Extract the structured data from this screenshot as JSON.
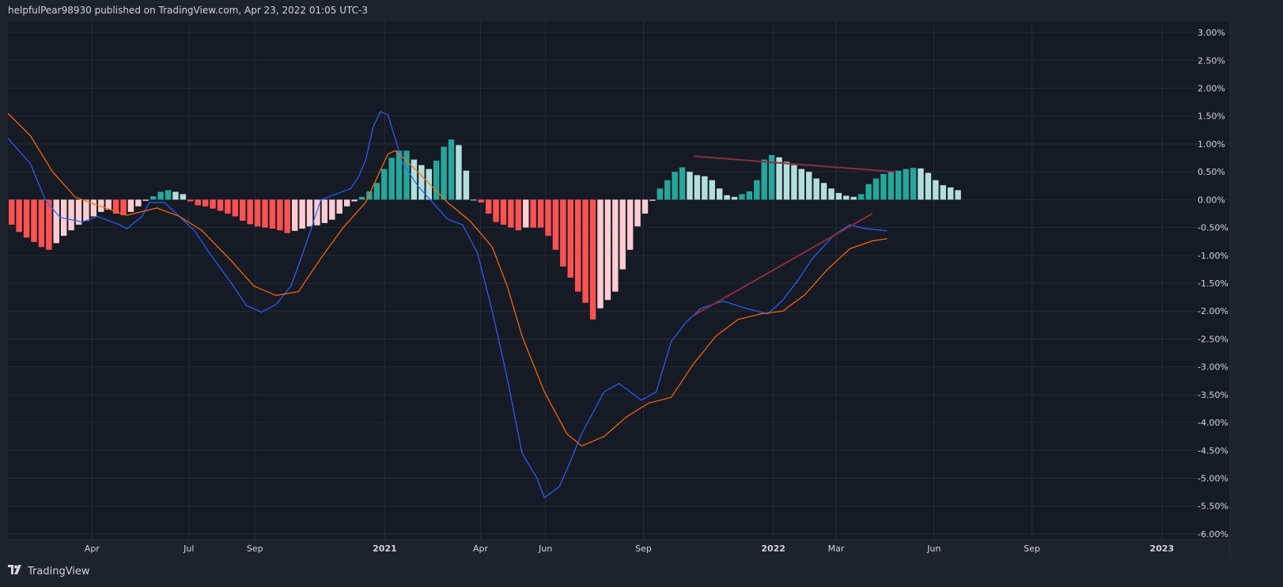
{
  "header": {
    "published_text": "helpfulPear98930 published on TradingView.com, Apr 23, 2022 01:05 UTC-3"
  },
  "footer": {
    "brand": "TradingView",
    "logo_icon": "tradingview-logo-icon"
  },
  "colors": {
    "background": "#161a25",
    "frame": "#1e222d",
    "grid": "#262b36",
    "macd_line": "#2962ff",
    "signal_line": "#ff6d00",
    "hist_pos_growing": "#26a69a",
    "hist_pos_falling": "#b2dfdb",
    "hist_neg_falling": "#ff5252",
    "hist_neg_rising": "#ffcdd2",
    "trendline": "#8a2e3f"
  },
  "chart_data": {
    "type": "line",
    "title": "",
    "xlabel": "",
    "ylabel": "",
    "ylim": [
      -6.1,
      3.2
    ],
    "grid": true,
    "y_ticks": [
      "3.00%",
      "2.50%",
      "2.00%",
      "1.50%",
      "1.00%",
      "0.50%",
      "0.00%",
      "-0.50%",
      "-1.00%",
      "-1.50%",
      "-2.00%",
      "-2.50%",
      "-3.00%",
      "-3.50%",
      "-4.00%",
      "-4.50%",
      "-5.00%",
      "-5.50%",
      "-6.00%"
    ],
    "x_ticks": [
      {
        "label": "Apr",
        "date": "2020-04-01",
        "bold": false
      },
      {
        "label": "Jul",
        "date": "2020-07-01",
        "bold": false
      },
      {
        "label": "Sep",
        "date": "2020-09-01",
        "bold": false
      },
      {
        "label": "2021",
        "date": "2021-01-01",
        "bold": true
      },
      {
        "label": "Apr",
        "date": "2021-04-01",
        "bold": false
      },
      {
        "label": "Jun",
        "date": "2021-06-01",
        "bold": false
      },
      {
        "label": "Sep",
        "date": "2021-09-01",
        "bold": false
      },
      {
        "label": "2022",
        "date": "2022-01-01",
        "bold": true
      },
      {
        "label": "Mar",
        "date": "2022-03-01",
        "bold": false
      },
      {
        "label": "Jun",
        "date": "2022-06-01",
        "bold": false
      },
      {
        "label": "Sep",
        "date": "2022-09-01",
        "bold": false
      },
      {
        "label": "2023",
        "date": "2023-01-01",
        "bold": true
      }
    ],
    "x_range": [
      "2020-01-13",
      "2023-03-06"
    ],
    "histogram": {
      "start_date": "2020-01-13",
      "interval_days": 7,
      "values": [
        -0.45,
        -0.58,
        -0.68,
        -0.76,
        -0.85,
        -0.9,
        -0.78,
        -0.65,
        -0.55,
        -0.45,
        -0.38,
        -0.3,
        -0.22,
        -0.18,
        -0.25,
        -0.28,
        -0.22,
        -0.12,
        -0.02,
        0.06,
        0.14,
        0.17,
        0.14,
        0.1,
        -0.03,
        -0.1,
        -0.12,
        -0.16,
        -0.2,
        -0.25,
        -0.3,
        -0.38,
        -0.44,
        -0.48,
        -0.5,
        -0.52,
        -0.55,
        -0.6,
        -0.56,
        -0.52,
        -0.48,
        -0.46,
        -0.42,
        -0.36,
        -0.25,
        -0.12,
        -0.03,
        0.05,
        0.15,
        0.3,
        0.55,
        0.75,
        0.88,
        0.88,
        0.72,
        0.62,
        0.55,
        0.7,
        0.95,
        1.08,
        0.98,
        0.52,
        0.0,
        -0.05,
        -0.25,
        -0.4,
        -0.45,
        -0.5,
        -0.55,
        -0.5,
        -0.5,
        -0.5,
        -0.65,
        -0.9,
        -1.2,
        -1.4,
        -1.65,
        -1.85,
        -2.15,
        -1.95,
        -1.8,
        -1.65,
        -1.25,
        -0.9,
        -0.48,
        -0.25,
        -0.02,
        0.2,
        0.35,
        0.5,
        0.58,
        0.5,
        0.44,
        0.42,
        0.35,
        0.2,
        0.08,
        0.05,
        0.1,
        0.15,
        0.35,
        0.72,
        0.8,
        0.76,
        0.68,
        0.62,
        0.55,
        0.5,
        0.38,
        0.3,
        0.2,
        0.12,
        0.07,
        0.05,
        0.1,
        0.28,
        0.38,
        0.46,
        0.5,
        0.52,
        0.55,
        0.57,
        0.56,
        0.48,
        0.35,
        0.26,
        0.22,
        0.17
      ]
    },
    "series": [
      {
        "name": "",
        "color_key": "macd_line",
        "points": [
          [
            "2020-01-13",
            1.1
          ],
          [
            "2020-02-03",
            0.65
          ],
          [
            "2020-02-17",
            0.0
          ],
          [
            "2020-03-02",
            -0.32
          ],
          [
            "2020-03-23",
            -0.4
          ],
          [
            "2020-04-06",
            -0.3
          ],
          [
            "2020-04-27",
            -0.45
          ],
          [
            "2020-05-04",
            -0.52
          ],
          [
            "2020-05-18",
            -0.3
          ],
          [
            "2020-05-25",
            -0.05
          ],
          [
            "2020-06-08",
            -0.05
          ],
          [
            "2020-06-22",
            -0.3
          ],
          [
            "2020-07-06",
            -0.55
          ],
          [
            "2020-07-20",
            -0.95
          ],
          [
            "2020-08-10",
            -1.5
          ],
          [
            "2020-08-24",
            -1.9
          ],
          [
            "2020-09-07",
            -2.02
          ],
          [
            "2020-09-21",
            -1.88
          ],
          [
            "2020-10-05",
            -1.55
          ],
          [
            "2020-10-19",
            -0.8
          ],
          [
            "2020-11-02",
            0.0
          ],
          [
            "2020-11-16",
            0.1
          ],
          [
            "2020-11-30",
            0.2
          ],
          [
            "2020-12-07",
            0.4
          ],
          [
            "2020-12-14",
            0.7
          ],
          [
            "2020-12-21",
            1.3
          ],
          [
            "2020-12-28",
            1.58
          ],
          [
            "2021-01-04",
            1.52
          ],
          [
            "2021-01-18",
            0.65
          ],
          [
            "2021-02-01",
            0.25
          ],
          [
            "2021-02-15",
            -0.05
          ],
          [
            "2021-03-01",
            -0.35
          ],
          [
            "2021-03-15",
            -0.45
          ],
          [
            "2021-03-29",
            -0.95
          ],
          [
            "2021-04-12",
            -2.0
          ],
          [
            "2021-04-26",
            -3.2
          ],
          [
            "2021-05-10",
            -4.55
          ],
          [
            "2021-05-24",
            -5.0
          ],
          [
            "2021-05-31",
            -5.35
          ],
          [
            "2021-06-14",
            -5.15
          ],
          [
            "2021-06-21",
            -4.85
          ],
          [
            "2021-07-05",
            -4.2
          ],
          [
            "2021-07-26",
            -3.45
          ],
          [
            "2021-08-09",
            -3.3
          ],
          [
            "2021-08-30",
            -3.6
          ],
          [
            "2021-09-13",
            -3.45
          ],
          [
            "2021-09-27",
            -2.55
          ],
          [
            "2021-10-11",
            -2.2
          ],
          [
            "2021-10-25",
            -1.95
          ],
          [
            "2021-11-15",
            -1.82
          ],
          [
            "2021-12-06",
            -1.95
          ],
          [
            "2021-12-27",
            -2.05
          ],
          [
            "2022-01-10",
            -1.8
          ],
          [
            "2022-01-24",
            -1.45
          ],
          [
            "2022-02-07",
            -1.05
          ],
          [
            "2022-02-28",
            -0.62
          ],
          [
            "2022-03-14",
            -0.45
          ],
          [
            "2022-03-28",
            -0.52
          ],
          [
            "2022-04-18",
            -0.56
          ]
        ]
      },
      {
        "name": "",
        "color_key": "signal_line",
        "points": [
          [
            "2020-01-13",
            1.55
          ],
          [
            "2020-02-03",
            1.15
          ],
          [
            "2020-02-24",
            0.5
          ],
          [
            "2020-03-16",
            0.05
          ],
          [
            "2020-04-06",
            -0.1
          ],
          [
            "2020-05-04",
            -0.28
          ],
          [
            "2020-06-01",
            -0.15
          ],
          [
            "2020-06-22",
            -0.3
          ],
          [
            "2020-07-13",
            -0.55
          ],
          [
            "2020-08-10",
            -1.1
          ],
          [
            "2020-08-31",
            -1.55
          ],
          [
            "2020-09-21",
            -1.72
          ],
          [
            "2020-10-12",
            -1.65
          ],
          [
            "2020-11-02",
            -1.05
          ],
          [
            "2020-11-23",
            -0.5
          ],
          [
            "2020-12-14",
            -0.05
          ],
          [
            "2021-01-04",
            0.82
          ],
          [
            "2021-01-11",
            0.88
          ],
          [
            "2021-02-01",
            0.5
          ],
          [
            "2021-03-01",
            -0.05
          ],
          [
            "2021-03-22",
            -0.38
          ],
          [
            "2021-04-12",
            -0.85
          ],
          [
            "2021-04-26",
            -1.55
          ],
          [
            "2021-05-10",
            -2.45
          ],
          [
            "2021-05-31",
            -3.45
          ],
          [
            "2021-06-21",
            -4.2
          ],
          [
            "2021-07-05",
            -4.42
          ],
          [
            "2021-07-26",
            -4.25
          ],
          [
            "2021-08-16",
            -3.9
          ],
          [
            "2021-09-06",
            -3.65
          ],
          [
            "2021-09-27",
            -3.55
          ],
          [
            "2021-10-18",
            -2.95
          ],
          [
            "2021-11-08",
            -2.45
          ],
          [
            "2021-11-29",
            -2.15
          ],
          [
            "2021-12-20",
            -2.05
          ],
          [
            "2022-01-10",
            -2.0
          ],
          [
            "2022-01-31",
            -1.7
          ],
          [
            "2022-02-21",
            -1.25
          ],
          [
            "2022-03-14",
            -0.88
          ],
          [
            "2022-04-04",
            -0.74
          ],
          [
            "2022-04-18",
            -0.7
          ]
        ]
      }
    ],
    "trendlines": [
      {
        "from": [
          "2021-10-18",
          0.78
        ],
        "to": [
          "2022-04-25",
          0.5
        ]
      },
      {
        "from": [
          "2021-10-18",
          -2.08
        ],
        "to": [
          "2022-04-04",
          -0.25
        ]
      }
    ]
  }
}
